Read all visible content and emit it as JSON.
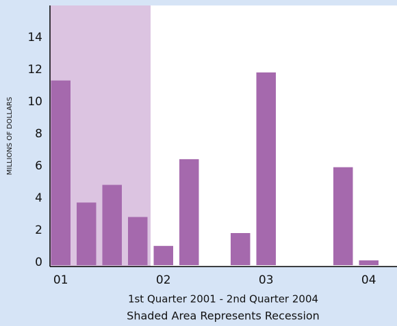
{
  "chart_data": {
    "type": "bar",
    "x_label": "1st Quarter 2001 - 2nd Quarter 2004",
    "note": "Shaded Area Represents Recession",
    "y_label": "MILLIONS OF DOLLARS",
    "categories": [
      "01",
      null,
      null,
      null,
      "02",
      null,
      null,
      null,
      "03",
      null,
      null,
      null,
      "04",
      null
    ],
    "values": [
      11.5,
      3.9,
      5,
      3,
      1.2,
      6.6,
      0,
      2,
      12,
      0,
      0,
      6.1,
      0.3,
      0
    ],
    "color": "#a569ad",
    "shaded_categories": [
      0,
      3
    ],
    "shade_color": "#dcc4e1",
    "ylim": [
      0,
      16
    ],
    "yticks": [
      0,
      2,
      4,
      6,
      8,
      10,
      12,
      14
    ]
  }
}
